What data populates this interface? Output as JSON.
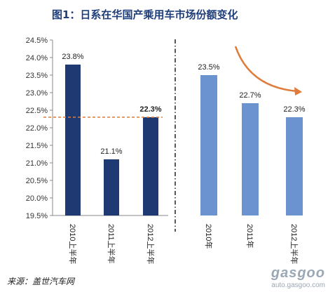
{
  "title": "图1：日系在华国产乘用车市场份额变化",
  "source": "来源：盖世汽车网",
  "watermark": {
    "logo": "gasgoo",
    "url": "auto.gasgoo.com"
  },
  "colors": {
    "dark_bar": "#1f3a73",
    "light_bar": "#6b93cf",
    "ref_line": "#e07b39",
    "arrow": "#e07b39"
  },
  "chart_data": [
    {
      "type": "bar",
      "categories": [
        "2010上半年",
        "2011上半年",
        "2012上半年"
      ],
      "values": [
        23.8,
        21.1,
        22.3
      ],
      "data_labels": [
        "23.8%",
        "21.1%",
        "22.3%"
      ],
      "ylim": [
        19.5,
        24.5
      ],
      "yticks": [
        "19.5%",
        "20.0%",
        "20.5%",
        "21.0%",
        "21.5%",
        "22.0%",
        "22.5%",
        "23.0%",
        "23.5%",
        "24.0%",
        "24.5%"
      ],
      "reference_line": 22.3,
      "grid": false
    },
    {
      "type": "bar",
      "categories": [
        "2010年",
        "2011年",
        "2012上半年"
      ],
      "values": [
        23.5,
        22.7,
        22.3
      ],
      "data_labels": [
        "23.5%",
        "22.7%",
        "22.3%"
      ],
      "ylim": [
        19.5,
        24.5
      ],
      "trend_arrow": "down",
      "grid": false
    }
  ]
}
